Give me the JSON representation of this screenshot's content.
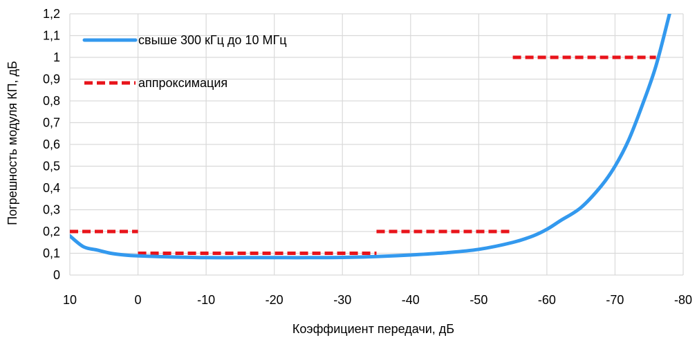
{
  "chart_data": {
    "type": "line",
    "title": "",
    "xlabel": "Коэффициент передачи, дБ",
    "ylabel": "Погрешность модуля КП, дБ",
    "xlim": [
      10,
      -80
    ],
    "ylim": [
      0,
      1.2
    ],
    "x_ticks": [
      10,
      0,
      -10,
      -20,
      -30,
      -40,
      -50,
      -60,
      -70,
      -80
    ],
    "x_tick_labels": [
      "10",
      "0",
      "-10",
      "-20",
      "-30",
      "-40",
      "-50",
      "-60",
      "-70",
      "-80"
    ],
    "y_ticks": [
      0,
      0.1,
      0.2,
      0.3,
      0.4,
      0.5,
      0.6,
      0.7,
      0.8,
      0.9,
      1.0,
      1.1,
      1.2
    ],
    "y_tick_labels": [
      "0",
      "0,1",
      "0,2",
      "0,3",
      "0,4",
      "0,5",
      "0,6",
      "0,7",
      "0,8",
      "0,9",
      "1",
      "1,1",
      "1,2"
    ],
    "grid": true,
    "legend_position": "top-left",
    "series": [
      {
        "name": "свыше 300 кГц до 10 МГц",
        "style": "solid",
        "color": "#3399EE",
        "x": [
          10,
          8,
          6,
          4,
          2,
          0,
          -5,
          -10,
          -15,
          -20,
          -25,
          -30,
          -35,
          -40,
          -45,
          -50,
          -55,
          -58,
          -60,
          -62,
          -65,
          -68,
          -70,
          -72,
          -74,
          -76,
          -78
        ],
        "y": [
          0.18,
          0.13,
          0.115,
          0.1,
          0.092,
          0.088,
          0.083,
          0.08,
          0.08,
          0.08,
          0.08,
          0.081,
          0.085,
          0.092,
          0.102,
          0.118,
          0.15,
          0.18,
          0.21,
          0.25,
          0.31,
          0.41,
          0.5,
          0.62,
          0.78,
          0.96,
          1.2
        ]
      },
      {
        "name": "аппроксимация",
        "style": "dashed",
        "color": "#E8141B",
        "segments": [
          {
            "x": [
              10,
              0
            ],
            "y": [
              0.2,
              0.2
            ]
          },
          {
            "x": [
              0,
              -35
            ],
            "y": [
              0.1,
              0.1
            ]
          },
          {
            "x": [
              -35,
              -55
            ],
            "y": [
              0.2,
              0.2
            ]
          },
          {
            "x": [
              -55,
              -76
            ],
            "y": [
              1.0,
              1.0
            ]
          }
        ]
      }
    ]
  }
}
